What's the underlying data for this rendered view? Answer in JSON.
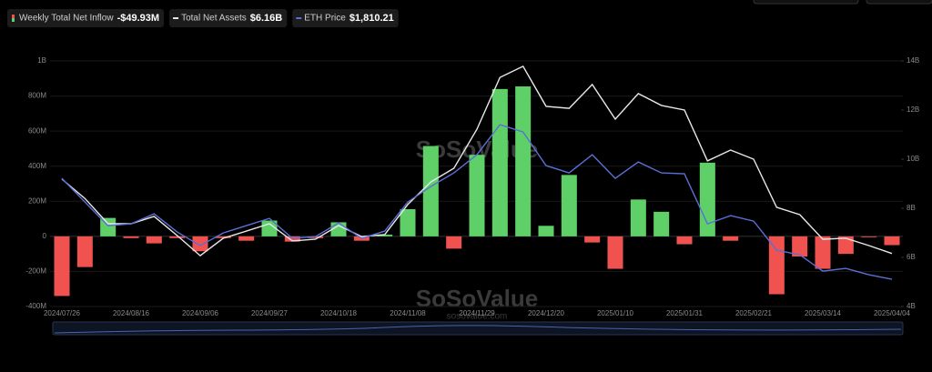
{
  "watermark": [
    "SoSoValue",
    "sosovalue.com"
  ],
  "chart_data": {
    "type": "bar",
    "categories": [
      "2024/07/26",
      null,
      null,
      "2024/08/16",
      null,
      null,
      "2024/09/06",
      null,
      null,
      "2024/09/27",
      null,
      null,
      "2024/10/18",
      null,
      null,
      "2024/11/08",
      null,
      null,
      "2024/11/29",
      null,
      null,
      "2024/12/20",
      null,
      null,
      "2025/01/10",
      null,
      null,
      "2025/01/31",
      null,
      null,
      "2025/02/21",
      null,
      null,
      "2025/03/14",
      null,
      null,
      "2025/04/04"
    ],
    "ylim": [
      -400,
      1000
    ],
    "yticks": [
      {
        "value": -400,
        "label": "-400M"
      },
      {
        "value": -200,
        "label": "-200M"
      },
      0,
      {
        "value": 200,
        "label": "200M"
      },
      {
        "value": 400,
        "label": "400M"
      },
      {
        "value": 600,
        "label": "600M"
      },
      {
        "value": 800,
        "label": "800M"
      },
      {
        "value": 1000,
        "label": "1B"
      }
    ],
    "y2lim": [
      4,
      14
    ],
    "y2ticks": [
      {
        "value": 4,
        "label": "4B"
      },
      {
        "value": 6,
        "label": "6B"
      },
      {
        "value": 8,
        "label": "8B"
      },
      {
        "value": 10,
        "label": "10B"
      },
      {
        "value": 12,
        "label": "12B"
      },
      {
        "value": 14,
        "label": "14B"
      }
    ],
    "y3lim": [
      1440,
      4780
    ],
    "series": [
      {
        "name": "Weekly Total Net Inflow",
        "type": "bar",
        "color": "#5fd068",
        "negative_color": "#f0524f",
        "legend_value": "-$49.93M",
        "values": [
          -340,
          -175,
          105,
          -10,
          -40,
          -10,
          -85,
          -10,
          -25,
          90,
          -30,
          -10,
          80,
          -25,
          10,
          155,
          515,
          -70,
          465,
          840,
          855,
          60,
          350,
          -35,
          -185,
          210,
          140,
          -45,
          420,
          -25,
          0,
          -330,
          -115,
          -185,
          -100,
          -5,
          -49.93
        ]
      },
      {
        "name": "Total Net Assets",
        "type": "line",
        "axis": "y2",
        "color": "#e8e8e8",
        "legend_value": "$6.16B",
        "values": [
          9.19,
          8.4,
          7.37,
          7.37,
          7.67,
          6.89,
          6.07,
          6.78,
          7.07,
          7.37,
          6.67,
          6.74,
          7.3,
          6.85,
          6.93,
          8.15,
          9.07,
          9.63,
          11.22,
          13.33,
          13.78,
          12.15,
          12.07,
          13.04,
          11.63,
          12.67,
          12.19,
          12.0,
          9.93,
          10.37,
          10.0,
          8.04,
          7.74,
          6.74,
          6.78,
          6.48,
          6.16
        ]
      },
      {
        "name": "ETH Price",
        "type": "line",
        "axis": "y3",
        "color": "#5b6fd6",
        "legend_value": "$1,810.21",
        "values": [
          3183,
          2861,
          2540,
          2565,
          2701,
          2453,
          2268,
          2441,
          2540,
          2639,
          2367,
          2391,
          2577,
          2367,
          2466,
          2861,
          3072,
          3257,
          3505,
          3913,
          3814,
          3356,
          3257,
          3505,
          3183,
          3406,
          3257,
          3245,
          2565,
          2676,
          2602,
          2206,
          2144,
          1921,
          1958,
          1872,
          1810.21
        ]
      }
    ]
  }
}
